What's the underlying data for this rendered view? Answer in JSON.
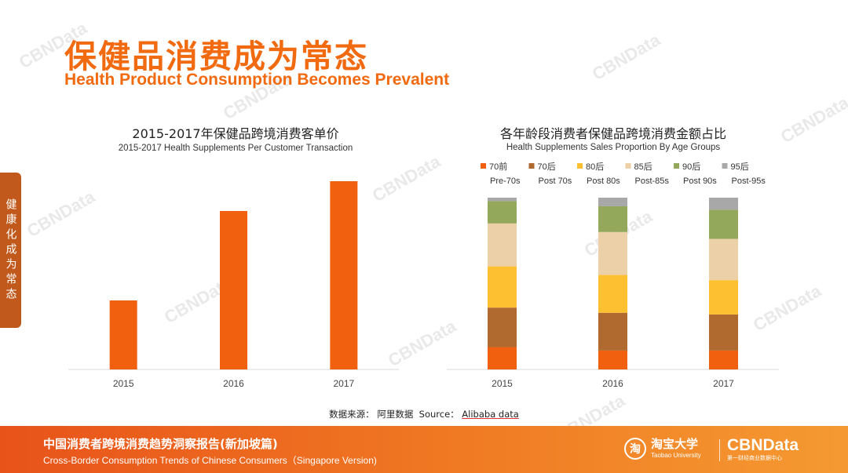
{
  "header": {
    "title_cn": "保健品消费成为常态",
    "title_en": "Health Product Consumption Becomes Prevalent"
  },
  "side_tab": {
    "label": "健康化成为常态"
  },
  "watermark": {
    "text": "CBNData"
  },
  "colors": {
    "accent": "#f26a10",
    "bar": "#f0600f",
    "pre70": "#f0600f",
    "post70": "#b0692f",
    "post80": "#fcc030",
    "post85": "#ecd0a8",
    "post90": "#94a85c",
    "post95": "#a8a8a8"
  },
  "chart_data": [
    {
      "type": "bar",
      "title": "2015-2017年保健品跨境消费客单价",
      "subtitle": "2015-2017 Health Supplements Per Customer Transaction",
      "categories": [
        "2015",
        "2016",
        "2017"
      ],
      "values": [
        88,
        202,
        240
      ],
      "ylim": [
        0,
        250
      ],
      "grid": false
    },
    {
      "type": "bar",
      "stacked": true,
      "title": "各年龄段消费者保健品跨境消费金额占比",
      "subtitle": "Health Supplements Sales Proportion By Age Groups",
      "categories": [
        "2015",
        "2016",
        "2017"
      ],
      "legend_position": "top",
      "series": [
        {
          "name": "70前",
          "name_en": "Pre-70s",
          "color_key": "pre70",
          "values": [
            13,
            11,
            11
          ]
        },
        {
          "name": "70后",
          "name_en": "Post 70s",
          "color_key": "post70",
          "values": [
            23,
            22,
            21
          ]
        },
        {
          "name": "80后",
          "name_en": "Post 80s",
          "color_key": "post80",
          "values": [
            24,
            22,
            20
          ]
        },
        {
          "name": "85后",
          "name_en": "Post-85s",
          "color_key": "post85",
          "values": [
            25,
            25,
            24
          ]
        },
        {
          "name": "90后",
          "name_en": "Post 90s",
          "color_key": "post90",
          "values": [
            13,
            15,
            17
          ]
        },
        {
          "name": "95后",
          "name_en": "Post-95s",
          "color_key": "post95",
          "values": [
            2,
            5,
            7
          ]
        }
      ],
      "ylim": [
        0,
        100
      ],
      "grid": false
    }
  ],
  "source": {
    "label": "数据来源：",
    "cn": "阿里数据",
    "en_prefix": "Source：",
    "en": "Alibaba data"
  },
  "footer": {
    "title_cn": "中国消费者跨境消费趋势洞察报告(新加坡篇)",
    "title_en": "Cross-Border Consumption Trends of Chinese Consumers（Singapore Version)",
    "taobao_cn": "淘宝大学",
    "taobao_en": "Taobao University",
    "cbn": "CBNData",
    "cbn_sub": "第一财经商业数据中心"
  }
}
